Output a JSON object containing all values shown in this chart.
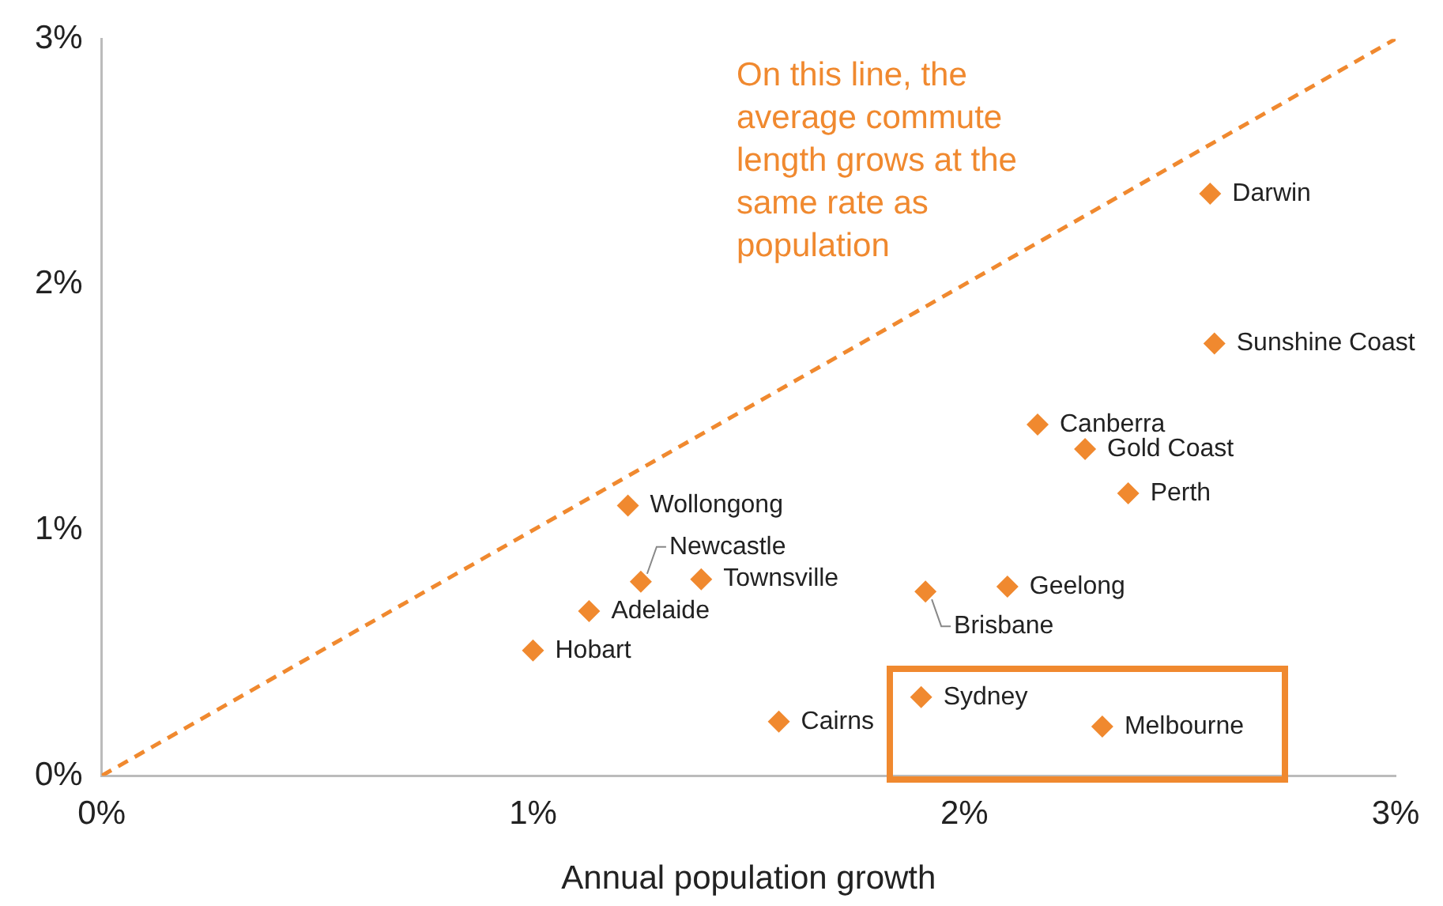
{
  "chart_data": {
    "type": "scatter",
    "xlabel": "Annual population growth",
    "xlim": [
      0,
      3
    ],
    "ylim": [
      0,
      3
    ],
    "xticks": [
      {
        "value": 0,
        "label": "0%"
      },
      {
        "value": 1,
        "label": "1%"
      },
      {
        "value": 2,
        "label": "2%"
      },
      {
        "value": 3,
        "label": "3%"
      }
    ],
    "yticks": [
      {
        "value": 0,
        "label": "0%"
      },
      {
        "value": 1,
        "label": "1%"
      },
      {
        "value": 2,
        "label": "2%"
      },
      {
        "value": 3,
        "label": "3%"
      }
    ],
    "grid": false,
    "legend": false,
    "marker": "diamond",
    "annotations": [
      "On this line, the average commute length grows at the same rate as population"
    ],
    "series": [
      {
        "type": "line",
        "color": "#f0892f",
        "line_style": "dashed",
        "marker": "none",
        "x": [
          0,
          3
        ],
        "values": [
          0,
          3
        ]
      },
      {
        "name": "Darwin",
        "color": "#f0892f",
        "x": [
          2.57
        ],
        "values": [
          2.37
        ]
      },
      {
        "name": "Sunshine Coast",
        "color": "#f0892f",
        "x": [
          2.58
        ],
        "values": [
          1.76
        ]
      },
      {
        "name": "Canberra",
        "color": "#f0892f",
        "x": [
          2.17
        ],
        "values": [
          1.43
        ]
      },
      {
        "name": "Gold Coast",
        "color": "#f0892f",
        "x": [
          2.28
        ],
        "values": [
          1.33
        ]
      },
      {
        "name": "Perth",
        "color": "#f0892f",
        "x": [
          2.38
        ],
        "values": [
          1.15
        ]
      },
      {
        "name": "Wollongong",
        "color": "#f0892f",
        "x": [
          1.22
        ],
        "values": [
          1.1
        ]
      },
      {
        "name": "Newcastle",
        "color": "#f0892f",
        "x": [
          1.25
        ],
        "values": [
          0.79
        ]
      },
      {
        "name": "Townsville",
        "color": "#f0892f",
        "x": [
          1.39
        ],
        "values": [
          0.8
        ]
      },
      {
        "name": "Adelaide",
        "color": "#f0892f",
        "x": [
          1.13
        ],
        "values": [
          0.67
        ]
      },
      {
        "name": "Hobart",
        "color": "#f0892f",
        "x": [
          1.0
        ],
        "values": [
          0.51
        ]
      },
      {
        "name": "Brisbane",
        "color": "#f0892f",
        "x": [
          1.91
        ],
        "values": [
          0.75
        ]
      },
      {
        "name": "Geelong",
        "color": "#f0892f",
        "x": [
          2.1
        ],
        "values": [
          0.77
        ]
      },
      {
        "name": "Sydney",
        "color": "#f0892f",
        "x": [
          1.9
        ],
        "values": [
          0.32
        ]
      },
      {
        "name": "Cairns",
        "color": "#f0892f",
        "x": [
          1.57
        ],
        "values": [
          0.22
        ]
      },
      {
        "name": "Melbourne",
        "color": "#f0892f",
        "x": [
          2.32
        ],
        "values": [
          0.2
        ]
      }
    ]
  }
}
